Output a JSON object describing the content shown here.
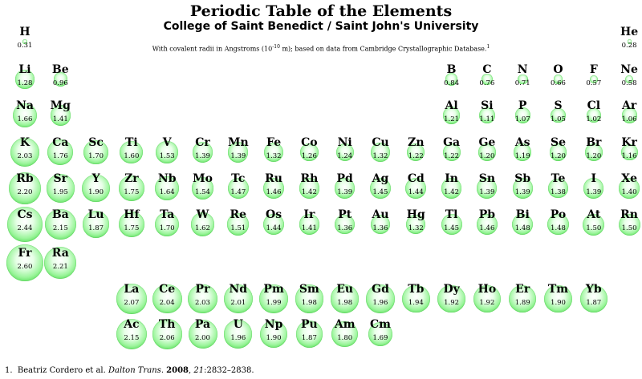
{
  "title": "Periodic Table of the Elements",
  "subtitle": "College of Saint Benedict / Saint John's University",
  "note": {
    "text": "With covalent radii in Angstroms (10",
    "exp": "-10",
    "rest": " m); based on data from Cambridge Crystallographic Database.",
    "ref": "1"
  },
  "bubble_colors": {
    "highlight": "#ffffff",
    "body": "#9cf59c",
    "edge": "#2bc62b"
  },
  "elements": [
    {
      "s": "H",
      "r": "0.31",
      "row": 1,
      "col": 1
    },
    {
      "s": "He",
      "r": "0.28",
      "row": 1,
      "col": 18
    },
    {
      "s": "Li",
      "r": "1.28",
      "row": 2,
      "col": 1
    },
    {
      "s": "Be",
      "r": "0.96",
      "row": 2,
      "col": 2
    },
    {
      "s": "B",
      "r": "0.84",
      "row": 2,
      "col": 13
    },
    {
      "s": "C",
      "r": "0.76",
      "row": 2,
      "col": 14
    },
    {
      "s": "N",
      "r": "0.71",
      "row": 2,
      "col": 15
    },
    {
      "s": "O",
      "r": "0.66",
      "row": 2,
      "col": 16
    },
    {
      "s": "F",
      "r": "0.57",
      "row": 2,
      "col": 17
    },
    {
      "s": "Ne",
      "r": "0.58",
      "row": 2,
      "col": 18
    },
    {
      "s": "Na",
      "r": "1.66",
      "row": 3,
      "col": 1
    },
    {
      "s": "Mg",
      "r": "1.41",
      "row": 3,
      "col": 2
    },
    {
      "s": "Al",
      "r": "1.21",
      "row": 3,
      "col": 13
    },
    {
      "s": "Si",
      "r": "1.11",
      "row": 3,
      "col": 14
    },
    {
      "s": "P",
      "r": "1.07",
      "row": 3,
      "col": 15
    },
    {
      "s": "S",
      "r": "1.05",
      "row": 3,
      "col": 16
    },
    {
      "s": "Cl",
      "r": "1.02",
      "row": 3,
      "col": 17
    },
    {
      "s": "Ar",
      "r": "1.06",
      "row": 3,
      "col": 18
    },
    {
      "s": "K",
      "r": "2.03",
      "row": 4,
      "col": 1
    },
    {
      "s": "Ca",
      "r": "1.76",
      "row": 4,
      "col": 2
    },
    {
      "s": "Sc",
      "r": "1.70",
      "row": 4,
      "col": 3
    },
    {
      "s": "Ti",
      "r": "1.60",
      "row": 4,
      "col": 4
    },
    {
      "s": "V",
      "r": "1.53",
      "row": 4,
      "col": 5
    },
    {
      "s": "Cr",
      "r": "1.39",
      "row": 4,
      "col": 6
    },
    {
      "s": "Mn",
      "r": "1.39",
      "row": 4,
      "col": 7
    },
    {
      "s": "Fe",
      "r": "1.32",
      "row": 4,
      "col": 8
    },
    {
      "s": "Co",
      "r": "1.26",
      "row": 4,
      "col": 9
    },
    {
      "s": "Ni",
      "r": "1.24",
      "row": 4,
      "col": 10
    },
    {
      "s": "Cu",
      "r": "1.32",
      "row": 4,
      "col": 11
    },
    {
      "s": "Zn",
      "r": "1.22",
      "row": 4,
      "col": 12
    },
    {
      "s": "Ga",
      "r": "1.22",
      "row": 4,
      "col": 13
    },
    {
      "s": "Ge",
      "r": "1.20",
      "row": 4,
      "col": 14
    },
    {
      "s": "As",
      "r": "1.19",
      "row": 4,
      "col": 15
    },
    {
      "s": "Se",
      "r": "1.20",
      "row": 4,
      "col": 16
    },
    {
      "s": "Br",
      "r": "1.20",
      "row": 4,
      "col": 17
    },
    {
      "s": "Kr",
      "r": "1.16",
      "row": 4,
      "col": 18
    },
    {
      "s": "Rb",
      "r": "2.20",
      "row": 5,
      "col": 1
    },
    {
      "s": "Sr",
      "r": "1.95",
      "row": 5,
      "col": 2
    },
    {
      "s": "Y",
      "r": "1.90",
      "row": 5,
      "col": 3
    },
    {
      "s": "Zr",
      "r": "1.75",
      "row": 5,
      "col": 4
    },
    {
      "s": "Nb",
      "r": "1.64",
      "row": 5,
      "col": 5
    },
    {
      "s": "Mo",
      "r": "1.54",
      "row": 5,
      "col": 6
    },
    {
      "s": "Tc",
      "r": "1.47",
      "row": 5,
      "col": 7
    },
    {
      "s": "Ru",
      "r": "1.46",
      "row": 5,
      "col": 8
    },
    {
      "s": "Rh",
      "r": "1.42",
      "row": 5,
      "col": 9
    },
    {
      "s": "Pd",
      "r": "1.39",
      "row": 5,
      "col": 10
    },
    {
      "s": "Ag",
      "r": "1.45",
      "row": 5,
      "col": 11
    },
    {
      "s": "Cd",
      "r": "1.44",
      "row": 5,
      "col": 12
    },
    {
      "s": "In",
      "r": "1.42",
      "row": 5,
      "col": 13
    },
    {
      "s": "Sn",
      "r": "1.39",
      "row": 5,
      "col": 14
    },
    {
      "s": "Sb",
      "r": "1.39",
      "row": 5,
      "col": 15
    },
    {
      "s": "Te",
      "r": "1.38",
      "row": 5,
      "col": 16
    },
    {
      "s": "I",
      "r": "1.39",
      "row": 5,
      "col": 17
    },
    {
      "s": "Xe",
      "r": "1.40",
      "row": 5,
      "col": 18
    },
    {
      "s": "Cs",
      "r": "2.44",
      "row": 6,
      "col": 1
    },
    {
      "s": "Ba",
      "r": "2.15",
      "row": 6,
      "col": 2
    },
    {
      "s": "Lu",
      "r": "1.87",
      "row": 6,
      "col": 3
    },
    {
      "s": "Hf",
      "r": "1.75",
      "row": 6,
      "col": 4
    },
    {
      "s": "Ta",
      "r": "1.70",
      "row": 6,
      "col": 5
    },
    {
      "s": "W",
      "r": "1.62",
      "row": 6,
      "col": 6
    },
    {
      "s": "Re",
      "r": "1.51",
      "row": 6,
      "col": 7
    },
    {
      "s": "Os",
      "r": "1.44",
      "row": 6,
      "col": 8
    },
    {
      "s": "Ir",
      "r": "1.41",
      "row": 6,
      "col": 9
    },
    {
      "s": "Pt",
      "r": "1.36",
      "row": 6,
      "col": 10
    },
    {
      "s": "Au",
      "r": "1.36",
      "row": 6,
      "col": 11
    },
    {
      "s": "Hg",
      "r": "1.32",
      "row": 6,
      "col": 12
    },
    {
      "s": "Tl",
      "r": "1.45",
      "row": 6,
      "col": 13
    },
    {
      "s": "Pb",
      "r": "1.46",
      "row": 6,
      "col": 14
    },
    {
      "s": "Bi",
      "r": "1.48",
      "row": 6,
      "col": 15
    },
    {
      "s": "Po",
      "r": "1.48",
      "row": 6,
      "col": 16
    },
    {
      "s": "At",
      "r": "1.50",
      "row": 6,
      "col": 17
    },
    {
      "s": "Rn",
      "r": "1.50",
      "row": 6,
      "col": 18
    },
    {
      "s": "Fr",
      "r": "2.60",
      "row": 7,
      "col": 1
    },
    {
      "s": "Ra",
      "r": "2.21",
      "row": 7,
      "col": 2
    },
    {
      "s": "La",
      "r": "2.07",
      "row": 8,
      "col": 4
    },
    {
      "s": "Ce",
      "r": "2.04",
      "row": 8,
      "col": 5
    },
    {
      "s": "Pr",
      "r": "2.03",
      "row": 8,
      "col": 6
    },
    {
      "s": "Nd",
      "r": "2.01",
      "row": 8,
      "col": 7
    },
    {
      "s": "Pm",
      "r": "1.99",
      "row": 8,
      "col": 8
    },
    {
      "s": "Sm",
      "r": "1.98",
      "row": 8,
      "col": 9
    },
    {
      "s": "Eu",
      "r": "1.98",
      "row": 8,
      "col": 10
    },
    {
      "s": "Gd",
      "r": "1.96",
      "row": 8,
      "col": 11
    },
    {
      "s": "Tb",
      "r": "1.94",
      "row": 8,
      "col": 12
    },
    {
      "s": "Dy",
      "r": "1.92",
      "row": 8,
      "col": 13
    },
    {
      "s": "Ho",
      "r": "1.92",
      "row": 8,
      "col": 14
    },
    {
      "s": "Er",
      "r": "1.89",
      "row": 8,
      "col": 15
    },
    {
      "s": "Tm",
      "r": "1.90",
      "row": 8,
      "col": 16
    },
    {
      "s": "Yb",
      "r": "1.87",
      "row": 8,
      "col": 17
    },
    {
      "s": "Ac",
      "r": "2.15",
      "row": 9,
      "col": 4
    },
    {
      "s": "Th",
      "r": "2.06",
      "row": 9,
      "col": 5
    },
    {
      "s": "Pa",
      "r": "2.00",
      "row": 9,
      "col": 6
    },
    {
      "s": "U",
      "r": "1.96",
      "row": 9,
      "col": 7
    },
    {
      "s": "Np",
      "r": "1.90",
      "row": 9,
      "col": 8
    },
    {
      "s": "Pu",
      "r": "1.87",
      "row": 9,
      "col": 9
    },
    {
      "s": "Am",
      "r": "1.80",
      "row": 9,
      "col": 10
    },
    {
      "s": "Cm",
      "r": "1.69",
      "row": 9,
      "col": 11
    }
  ],
  "footnote": {
    "number": "1.",
    "authors": "Beatriz Cordero et al.",
    "journal": "Dalton Trans",
    "year": "2008",
    "volume": "21",
    "pages": ":2832–2838."
  }
}
